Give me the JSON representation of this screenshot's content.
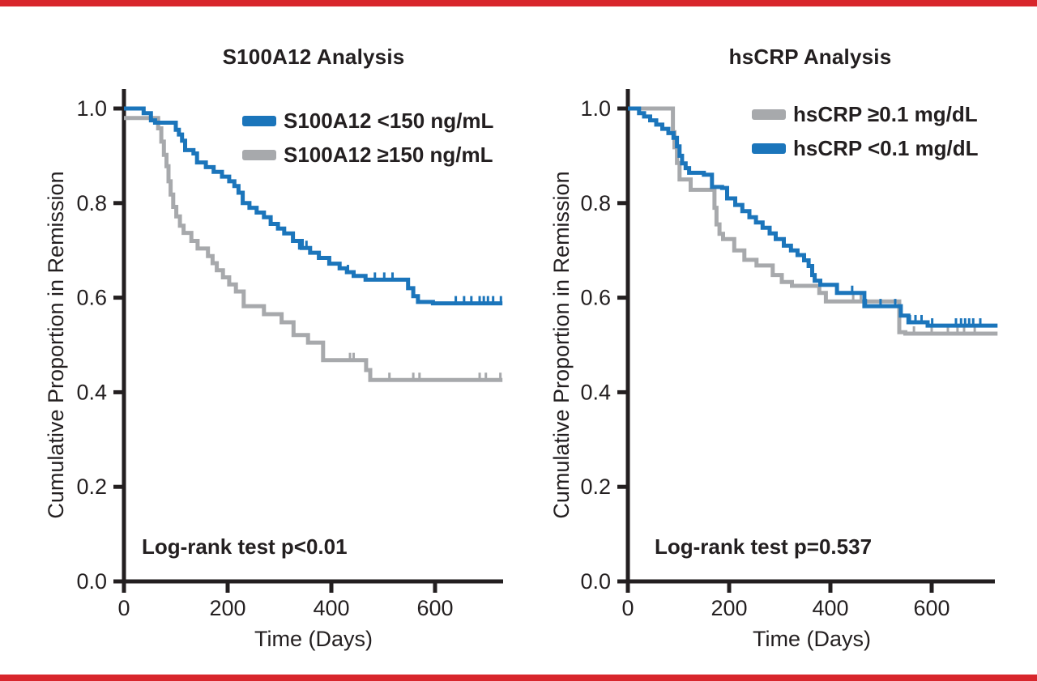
{
  "page": {
    "top_border_color": "#d8262c",
    "bottom_border_color": "#d8262c",
    "background_color": "#ffffff",
    "text_color": "#231f20",
    "axis_color": "#231f20"
  },
  "chart_data": [
    {
      "type": "line",
      "subtype": "kaplan-meier-step",
      "title": "S100A12 Analysis",
      "xlabel": "Time (Days)",
      "ylabel": "Cumulative Proportion in Remission",
      "annotation": "Log-rank test p<0.01",
      "xlim": [
        0,
        730
      ],
      "ylim": [
        0,
        1.0
      ],
      "grid": false,
      "legend_position": "top-right-inside",
      "xticks": [
        {
          "v": 0,
          "label": "0"
        },
        {
          "v": 200,
          "label": "200"
        },
        {
          "v": 400,
          "label": "400"
        },
        {
          "v": 600,
          "label": "600"
        }
      ],
      "yticks": [
        {
          "v": 1.0,
          "label": "1.0"
        },
        {
          "v": 0.8,
          "label": "0.8"
        },
        {
          "v": 0.6,
          "label": "0.6"
        },
        {
          "v": 0.4,
          "label": "0.4"
        },
        {
          "v": 0.2,
          "label": "0.2"
        },
        {
          "v": 0.0,
          "label": "0.0"
        }
      ],
      "series": [
        {
          "name": "S100A12 <150 ng/mL",
          "color": "#1b75bb",
          "steps": [
            [
              0,
              1.0
            ],
            [
              30,
              1.0
            ],
            [
              38,
              0.99
            ],
            [
              52,
              0.975
            ],
            [
              60,
              0.97
            ],
            [
              94,
              0.97
            ],
            [
              100,
              0.955
            ],
            [
              106,
              0.945
            ],
            [
              112,
              0.932
            ],
            [
              118,
              0.912
            ],
            [
              134,
              0.905
            ],
            [
              141,
              0.886
            ],
            [
              158,
              0.876
            ],
            [
              173,
              0.866
            ],
            [
              189,
              0.856
            ],
            [
              203,
              0.846
            ],
            [
              213,
              0.836
            ],
            [
              221,
              0.822
            ],
            [
              229,
              0.8
            ],
            [
              242,
              0.79
            ],
            [
              256,
              0.78
            ],
            [
              270,
              0.77
            ],
            [
              283,
              0.756
            ],
            [
              297,
              0.746
            ],
            [
              309,
              0.736
            ],
            [
              326,
              0.72
            ],
            [
              343,
              0.705
            ],
            [
              359,
              0.695
            ],
            [
              376,
              0.684
            ],
            [
              396,
              0.672
            ],
            [
              416,
              0.662
            ],
            [
              430,
              0.654
            ],
            [
              443,
              0.646
            ],
            [
              466,
              0.638
            ],
            [
              540,
              0.638
            ],
            [
              548,
              0.62
            ],
            [
              558,
              0.603
            ],
            [
              567,
              0.591
            ],
            [
              596,
              0.588
            ],
            [
              730,
              0.588
            ]
          ],
          "censor_marks": [
            [
              338,
              0.705
            ],
            [
              352,
              0.705
            ],
            [
              432,
              0.654
            ],
            [
              484,
              0.638
            ],
            [
              502,
              0.638
            ],
            [
              518,
              0.638
            ],
            [
              640,
              0.588
            ],
            [
              656,
              0.588
            ],
            [
              670,
              0.588
            ],
            [
              686,
              0.588
            ],
            [
              694,
              0.588
            ],
            [
              702,
              0.588
            ],
            [
              712,
              0.588
            ],
            [
              727,
              0.588
            ]
          ]
        },
        {
          "name": "S100A12 ≥150 ng/mL",
          "color": "#a7a9ac",
          "steps": [
            [
              0,
              0.98
            ],
            [
              60,
              0.98
            ],
            [
              66,
              0.958
            ],
            [
              72,
              0.93
            ],
            [
              77,
              0.902
            ],
            [
              82,
              0.878
            ],
            [
              86,
              0.846
            ],
            [
              90,
              0.818
            ],
            [
              95,
              0.792
            ],
            [
              101,
              0.772
            ],
            [
              108,
              0.752
            ],
            [
              115,
              0.737
            ],
            [
              130,
              0.72
            ],
            [
              142,
              0.704
            ],
            [
              162,
              0.688
            ],
            [
              171,
              0.673
            ],
            [
              179,
              0.658
            ],
            [
              191,
              0.643
            ],
            [
              203,
              0.628
            ],
            [
              216,
              0.613
            ],
            [
              231,
              0.582
            ],
            [
              270,
              0.565
            ],
            [
              304,
              0.548
            ],
            [
              327,
              0.521
            ],
            [
              355,
              0.505
            ],
            [
              384,
              0.468
            ],
            [
              460,
              0.468
            ],
            [
              467,
              0.447
            ],
            [
              475,
              0.426
            ],
            [
              730,
              0.426
            ]
          ],
          "censor_marks": [
            [
              436,
              0.468
            ],
            [
              443,
              0.468
            ],
            [
              512,
              0.426
            ],
            [
              558,
              0.426
            ],
            [
              570,
              0.426
            ],
            [
              686,
              0.426
            ],
            [
              698,
              0.426
            ],
            [
              726,
              0.426
            ]
          ]
        }
      ]
    },
    {
      "type": "line",
      "subtype": "kaplan-meier-step",
      "title": "hsCRP Analysis",
      "xlabel": "Time (Days)",
      "ylabel": "Cumulative Proportion in Remission",
      "annotation": "Log-rank test p=0.537",
      "xlim": [
        0,
        730
      ],
      "ylim": [
        0,
        1.0
      ],
      "grid": false,
      "legend_position": "top-right-inside",
      "xticks": [
        {
          "v": 0,
          "label": "0"
        },
        {
          "v": 200,
          "label": "200"
        },
        {
          "v": 400,
          "label": "400"
        },
        {
          "v": 600,
          "label": "600"
        }
      ],
      "yticks": [
        {
          "v": 1.0,
          "label": "1.0"
        },
        {
          "v": 0.8,
          "label": "0.8"
        },
        {
          "v": 0.6,
          "label": "0.6"
        },
        {
          "v": 0.4,
          "label": "0.4"
        },
        {
          "v": 0.2,
          "label": "0.2"
        },
        {
          "v": 0.0,
          "label": "0.0"
        }
      ],
      "series": [
        {
          "name": "hsCRP ≥0.1 mg/dL",
          "color": "#a7a9ac",
          "steps": [
            [
              0,
              1.0
            ],
            [
              85,
              1.0
            ],
            [
              89,
              0.95
            ],
            [
              92,
              0.918
            ],
            [
              97,
              0.885
            ],
            [
              102,
              0.85
            ],
            [
              124,
              0.828
            ],
            [
              167,
              0.828
            ],
            [
              171,
              0.79
            ],
            [
              175,
              0.755
            ],
            [
              181,
              0.735
            ],
            [
              188,
              0.724
            ],
            [
              210,
              0.7
            ],
            [
              230,
              0.68
            ],
            [
              254,
              0.668
            ],
            [
              286,
              0.648
            ],
            [
              304,
              0.633
            ],
            [
              324,
              0.625
            ],
            [
              378,
              0.61
            ],
            [
              391,
              0.592
            ],
            [
              531,
              0.592
            ],
            [
              536,
              0.527
            ],
            [
              548,
              0.524
            ],
            [
              730,
              0.524
            ]
          ],
          "censor_marks": [
            [
              445,
              0.592
            ],
            [
              460,
              0.592
            ],
            [
              565,
              0.524
            ],
            [
              600,
              0.524
            ],
            [
              632,
              0.524
            ],
            [
              651,
              0.524
            ],
            [
              664,
              0.524
            ],
            [
              685,
              0.524
            ]
          ]
        },
        {
          "name": "hsCRP <0.1 mg/dL",
          "color": "#1b75bb",
          "steps": [
            [
              0,
              1.0
            ],
            [
              18,
              1.0
            ],
            [
              22,
              0.99
            ],
            [
              32,
              0.983
            ],
            [
              44,
              0.975
            ],
            [
              56,
              0.966
            ],
            [
              68,
              0.957
            ],
            [
              80,
              0.948
            ],
            [
              90,
              0.938
            ],
            [
              97,
              0.92
            ],
            [
              102,
              0.9
            ],
            [
              107,
              0.884
            ],
            [
              114,
              0.874
            ],
            [
              121,
              0.864
            ],
            [
              150,
              0.86
            ],
            [
              166,
              0.834
            ],
            [
              186,
              0.832
            ],
            [
              196,
              0.81
            ],
            [
              212,
              0.796
            ],
            [
              226,
              0.783
            ],
            [
              240,
              0.77
            ],
            [
              253,
              0.759
            ],
            [
              266,
              0.748
            ],
            [
              280,
              0.736
            ],
            [
              292,
              0.724
            ],
            [
              308,
              0.71
            ],
            [
              322,
              0.7
            ],
            [
              335,
              0.69
            ],
            [
              348,
              0.679
            ],
            [
              357,
              0.667
            ],
            [
              364,
              0.648
            ],
            [
              369,
              0.636
            ],
            [
              380,
              0.627
            ],
            [
              413,
              0.61
            ],
            [
              462,
              0.61
            ],
            [
              467,
              0.582
            ],
            [
              533,
              0.582
            ],
            [
              539,
              0.562
            ],
            [
              554,
              0.548
            ],
            [
              592,
              0.541
            ],
            [
              730,
              0.541
            ]
          ],
          "censor_marks": [
            [
              443,
              0.61
            ],
            [
              470,
              0.582
            ],
            [
              499,
              0.582
            ],
            [
              528,
              0.582
            ],
            [
              557,
              0.548
            ],
            [
              568,
              0.548
            ],
            [
              580,
              0.548
            ],
            [
              601,
              0.541
            ],
            [
              648,
              0.541
            ],
            [
              658,
              0.541
            ],
            [
              666,
              0.541
            ],
            [
              674,
              0.541
            ],
            [
              682,
              0.541
            ],
            [
              696,
              0.541
            ]
          ]
        }
      ]
    }
  ]
}
